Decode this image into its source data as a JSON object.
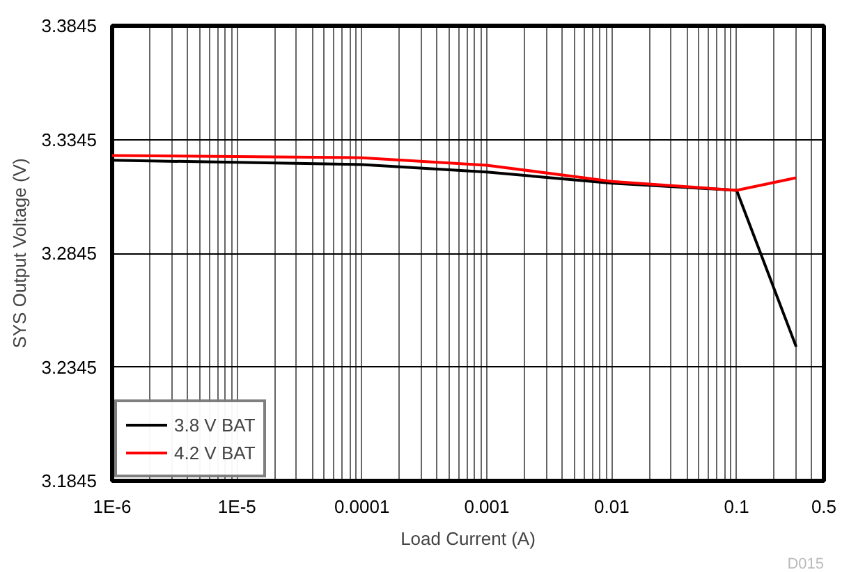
{
  "chart_data": {
    "type": "line",
    "xlabel": "Load Current (A)",
    "ylabel": "SYS Output Voltage (V)",
    "log": "x",
    "xlim": [
      1e-06,
      0.5
    ],
    "xticks": [
      {
        "value": 1e-06,
        "label": "1E-6"
      },
      {
        "value": 1e-05,
        "label": "1E-5"
      },
      0.0001,
      0.001,
      0.01,
      0.1,
      0.5
    ],
    "ylim": [
      3.1845,
      3.3845
    ],
    "yticks": [
      3.1845,
      3.2345,
      3.2845,
      3.3345,
      3.3845
    ],
    "grid": true,
    "legend": "bottom left",
    "line_style": "solid",
    "annotations": [
      "D015"
    ],
    "series": [
      {
        "name": "3.8 V BAT",
        "color": "#000000",
        "x": [
          1e-06,
          0.0001,
          0.001,
          0.01,
          0.1,
          0.3
        ],
        "values": [
          3.3254,
          3.3235,
          3.3202,
          3.3153,
          3.3122,
          3.2434
        ]
      },
      {
        "name": "4.2 V BAT",
        "color": "#ff0000",
        "x": [
          1e-06,
          0.0001,
          0.001,
          0.01,
          0.1,
          0.3
        ],
        "values": [
          3.3275,
          3.3265,
          3.3232,
          3.3161,
          3.3122,
          3.3177
        ]
      }
    ]
  }
}
